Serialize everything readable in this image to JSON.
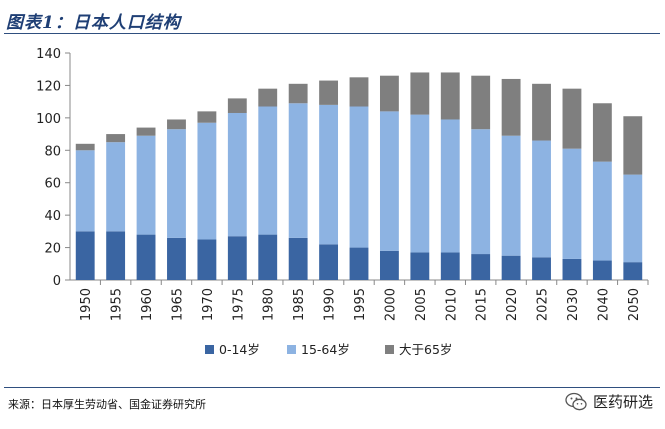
{
  "header": {
    "title": "图表1：日本人口结构"
  },
  "footer": {
    "source": "来源：日本厚生劳动省、国金证券研究所",
    "brand": "医药研选",
    "brand_icon": "wechat-icon"
  },
  "chart_data": {
    "type": "bar",
    "stacked": true,
    "categories": [
      "1950",
      "1955",
      "1960",
      "1965",
      "1970",
      "1975",
      "1980",
      "1985",
      "1990",
      "1995",
      "2000",
      "2005",
      "2010",
      "2015",
      "2020",
      "2025",
      "2030",
      "2040",
      "2050"
    ],
    "series": [
      {
        "name": "0-14岁",
        "color": "#3a65a2",
        "values": [
          30,
          30,
          28,
          26,
          25,
          27,
          28,
          26,
          22,
          20,
          18,
          17,
          17,
          16,
          15,
          14,
          13,
          12,
          11
        ]
      },
      {
        "name": "15-64岁",
        "color": "#8db3e2",
        "values": [
          50,
          55,
          61,
          67,
          72,
          76,
          79,
          83,
          86,
          87,
          86,
          85,
          82,
          77,
          74,
          72,
          68,
          61,
          54
        ]
      },
      {
        "name": "大于65岁",
        "color": "#7f7f7f",
        "values": [
          4,
          5,
          5,
          6,
          7,
          9,
          11,
          12,
          15,
          18,
          22,
          26,
          29,
          33,
          35,
          35,
          37,
          36,
          36
        ]
      }
    ],
    "ylim": [
      0,
      140
    ],
    "yticks": [
      0,
      20,
      40,
      60,
      80,
      100,
      120,
      140
    ],
    "grid": false,
    "legend": "bottom"
  }
}
